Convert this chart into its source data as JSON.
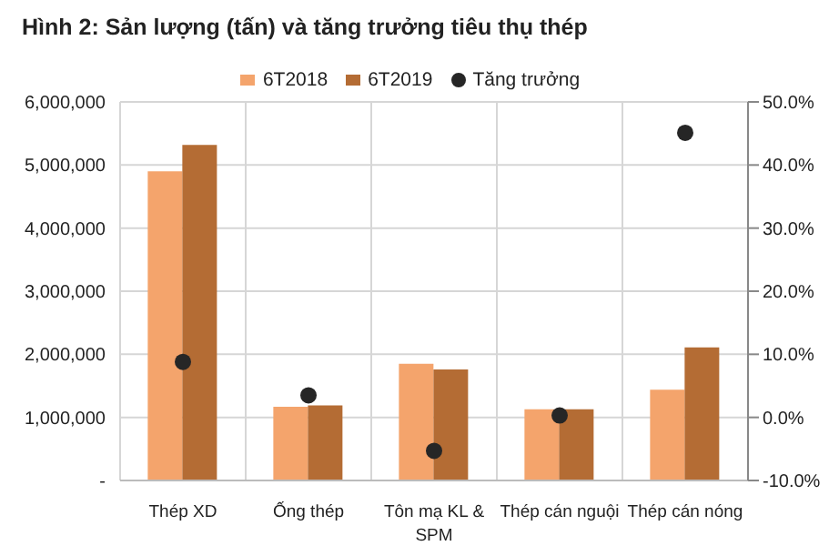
{
  "chart_data": {
    "type": "bar",
    "title": "Hình 2: Sản lượng (tấn) và tăng trưởng tiêu thụ thép",
    "categories": [
      "Thép XD",
      "Ống thép",
      "Tôn mạ KL & SPM",
      "Thép cán nguội",
      "Thép cán nóng"
    ],
    "series": [
      {
        "name": "6T2018",
        "color": "#f4a46c",
        "values": [
          4900000,
          1170000,
          1850000,
          1130000,
          1440000
        ]
      },
      {
        "name": "6T2019",
        "color": "#b46c34",
        "values": [
          5320000,
          1190000,
          1760000,
          1130000,
          2110000
        ]
      },
      {
        "name": "Tăng trưởng",
        "type": "scatter",
        "axis": "y2",
        "color": "#262626",
        "values": [
          8.8,
          3.5,
          -5.3,
          0.3,
          45.1
        ]
      }
    ],
    "ylim": [
      0,
      6000000
    ],
    "yticks": [
      {
        "value": 0,
        "label": "-"
      },
      {
        "value": 1000000,
        "label": "1,000,000"
      },
      {
        "value": 2000000,
        "label": "2,000,000"
      },
      {
        "value": 3000000,
        "label": "3,000,000"
      },
      {
        "value": 4000000,
        "label": "4,000,000"
      },
      {
        "value": 5000000,
        "label": "5,000,000"
      },
      {
        "value": 6000000,
        "label": "6,000,000"
      }
    ],
    "y2lim": [
      -10,
      50
    ],
    "y2ticks": [
      {
        "value": -10,
        "label": "-10.0%"
      },
      {
        "value": 0,
        "label": "0.0%"
      },
      {
        "value": 10,
        "label": "10.0%"
      },
      {
        "value": 20,
        "label": "20.0%"
      },
      {
        "value": 30,
        "label": "30.0%"
      },
      {
        "value": 40,
        "label": "40.0%"
      },
      {
        "value": 50,
        "label": "50.0%"
      }
    ],
    "grid": true,
    "legend": "top",
    "marker": "circle"
  }
}
